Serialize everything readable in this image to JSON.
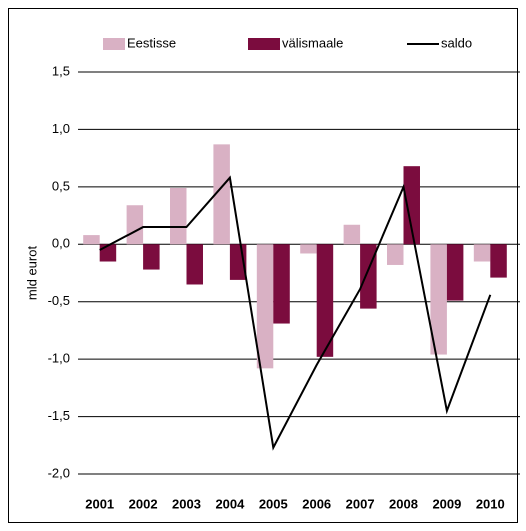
{
  "chart_data": {
    "type": "bar",
    "y_label": "mld eurot",
    "categories": [
      "2001",
      "2002",
      "2003",
      "2004",
      "2005",
      "2006",
      "2007",
      "2008",
      "2009",
      "2010"
    ],
    "series": [
      {
        "name": "Eestisse",
        "color": "#d9b1c4",
        "type": "bar",
        "values": [
          0.08,
          0.34,
          0.49,
          0.87,
          -1.08,
          -0.08,
          0.17,
          -0.18,
          -0.96,
          -0.15
        ]
      },
      {
        "name": "välismaale",
        "color": "#7b0c3e",
        "type": "bar",
        "values": [
          -0.15,
          -0.22,
          -0.35,
          -0.31,
          -0.69,
          -0.98,
          -0.56,
          0.68,
          -0.49,
          -0.29
        ]
      },
      {
        "name": "saldo",
        "color": "#000000",
        "type": "line",
        "values": [
          -0.05,
          0.15,
          0.15,
          0.58,
          -1.77,
          -1.05,
          -0.39,
          0.5,
          -1.45,
          -0.44
        ]
      }
    ],
    "ylim": [
      -2.0,
      1.5
    ],
    "yticks": [
      {
        "value": -2.0,
        "label": "-2,0"
      },
      {
        "value": -1.5,
        "label": "-1,5"
      },
      {
        "value": -1.0,
        "label": "-1,0"
      },
      {
        "value": -0.5,
        "label": "-0,5"
      },
      {
        "value": 0.0,
        "label": "0,0"
      },
      {
        "value": 0.5,
        "label": "0,5"
      },
      {
        "value": 1.0,
        "label": "1,0"
      },
      {
        "value": 1.5,
        "label": "1,5"
      }
    ],
    "grid": true
  }
}
